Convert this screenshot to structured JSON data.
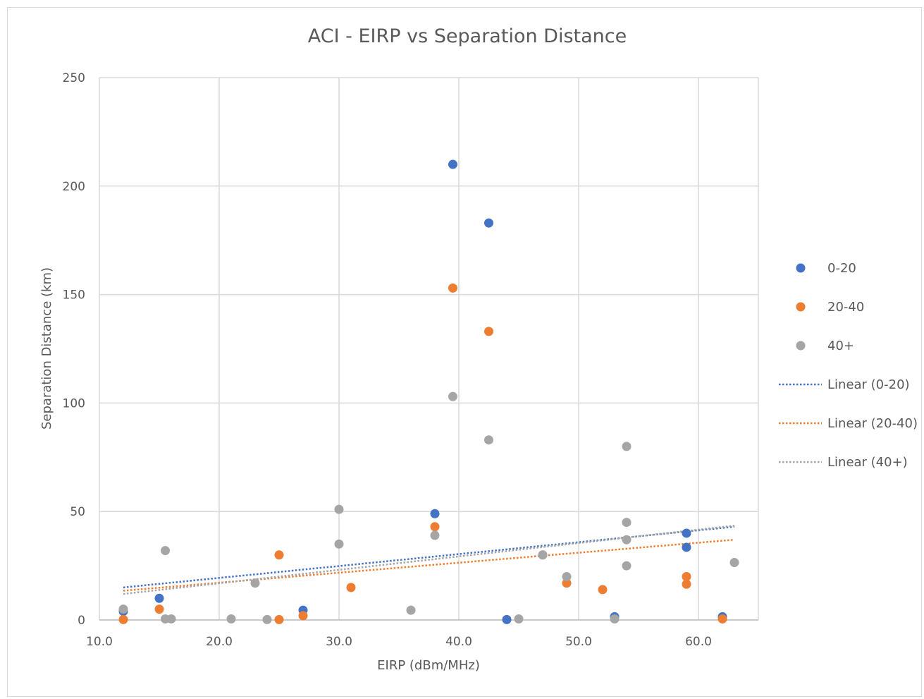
{
  "chart_data": {
    "type": "scatter",
    "title": "ACI - EIRP vs Separation Distance",
    "xlabel": "EIRP (dBm/MHz)",
    "ylabel": "Separation Distance (km)",
    "xlim": [
      10,
      65
    ],
    "ylim": [
      0,
      250
    ],
    "x_ticks": [
      10,
      20,
      30,
      40,
      50,
      60
    ],
    "x_tick_labels": [
      "10.0",
      "20.0",
      "30.0",
      "40.0",
      "50.0",
      "60.0"
    ],
    "y_ticks": [
      0,
      50,
      100,
      150,
      200,
      250
    ],
    "y_tick_labels": [
      "0",
      "50",
      "100",
      "150",
      "200",
      "250"
    ],
    "grid": true,
    "legend_position": "right",
    "series": [
      {
        "name": "0-20",
        "color": "#4472c4",
        "points": [
          [
            12,
            4
          ],
          [
            15,
            10
          ],
          [
            27,
            4.5
          ],
          [
            38,
            49
          ],
          [
            39.5,
            210
          ],
          [
            42.5,
            183
          ],
          [
            44,
            0.2
          ],
          [
            53,
            1.5
          ],
          [
            59,
            40
          ],
          [
            59,
            33.5
          ],
          [
            62,
            1.5
          ]
        ]
      },
      {
        "name": "20-40",
        "color": "#ed7d31",
        "points": [
          [
            12,
            0.2
          ],
          [
            15,
            5
          ],
          [
            25,
            30
          ],
          [
            25,
            0.2
          ],
          [
            27,
            2
          ],
          [
            31,
            15
          ],
          [
            38,
            43
          ],
          [
            39.5,
            153
          ],
          [
            42.5,
            133
          ],
          [
            47,
            30
          ],
          [
            49,
            17
          ],
          [
            52,
            14
          ],
          [
            59,
            20
          ],
          [
            59,
            16.5
          ],
          [
            62,
            0.5
          ]
        ]
      },
      {
        "name": "40+",
        "color": "#a5a5a5",
        "points": [
          [
            12,
            5
          ],
          [
            15.5,
            32
          ],
          [
            15.5,
            0.5
          ],
          [
            16,
            0.5
          ],
          [
            21,
            0.5
          ],
          [
            23,
            17
          ],
          [
            24,
            0.2
          ],
          [
            30,
            51
          ],
          [
            30,
            35
          ],
          [
            36,
            4.5
          ],
          [
            38,
            39
          ],
          [
            39.5,
            103
          ],
          [
            42.5,
            83
          ],
          [
            45,
            0.5
          ],
          [
            47,
            30
          ],
          [
            49,
            20
          ],
          [
            53,
            0.5
          ],
          [
            54,
            80
          ],
          [
            54,
            45
          ],
          [
            54,
            37
          ],
          [
            54,
            25
          ],
          [
            63,
            26.5
          ]
        ]
      }
    ],
    "trendlines": [
      {
        "name": "Linear (0-20)",
        "color": "#4472c4",
        "x": [
          12,
          63
        ],
        "y": [
          15,
          43
        ]
      },
      {
        "name": "Linear (20-40)",
        "color": "#ed7d31",
        "x": [
          12,
          63
        ],
        "y": [
          13.5,
          37
        ]
      },
      {
        "name": "Linear (40+)",
        "color": "#a5a5a5",
        "x": [
          12,
          63
        ],
        "y": [
          12,
          43.5
        ]
      }
    ]
  }
}
